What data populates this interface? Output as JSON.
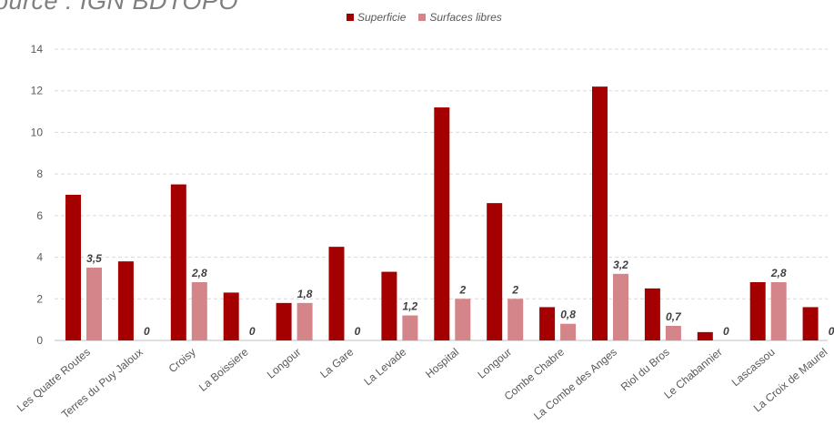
{
  "source_note": "ource : IGN BDTOPO",
  "colors": {
    "superficie": "#a50000",
    "surfaces_libres": "#d4858a",
    "grid": "#d9d9d9"
  },
  "chart_data": {
    "type": "bar",
    "title": "",
    "xlabel": "",
    "ylabel": "",
    "ylim": [
      0,
      14
    ],
    "yticks": [
      0,
      2,
      4,
      6,
      8,
      10,
      12,
      14
    ],
    "grid": true,
    "legend_position": "top",
    "categories": [
      "Les Quatre Routes",
      "Terres du Puy Jaloux",
      "Croisy",
      "La Boissiere",
      "Longour",
      "La Gare",
      "La Levade",
      "Hospital",
      "Longour",
      "Combe Chabre",
      "La Combe des Anges",
      "Riol du Bros",
      "Le Chabannier",
      "Lascassou",
      "La Croix de Maurel"
    ],
    "series": [
      {
        "name": "Superficie",
        "values": [
          7.0,
          3.8,
          7.5,
          2.3,
          1.8,
          4.5,
          3.3,
          11.2,
          6.6,
          1.6,
          12.2,
          2.5,
          0.4,
          2.8,
          1.6
        ]
      },
      {
        "name": "Surfaces libres",
        "values": [
          3.5,
          0,
          2.8,
          0,
          1.8,
          0,
          1.2,
          2,
          2,
          0.8,
          3.2,
          0.7,
          0,
          2.8,
          0
        ],
        "labels": [
          "3,5",
          "0",
          "2,8",
          "0",
          "1,8",
          "0",
          "1,2",
          "2",
          "2",
          "0,8",
          "3,2",
          "0,7",
          "0",
          "2,8",
          "0"
        ]
      }
    ]
  }
}
